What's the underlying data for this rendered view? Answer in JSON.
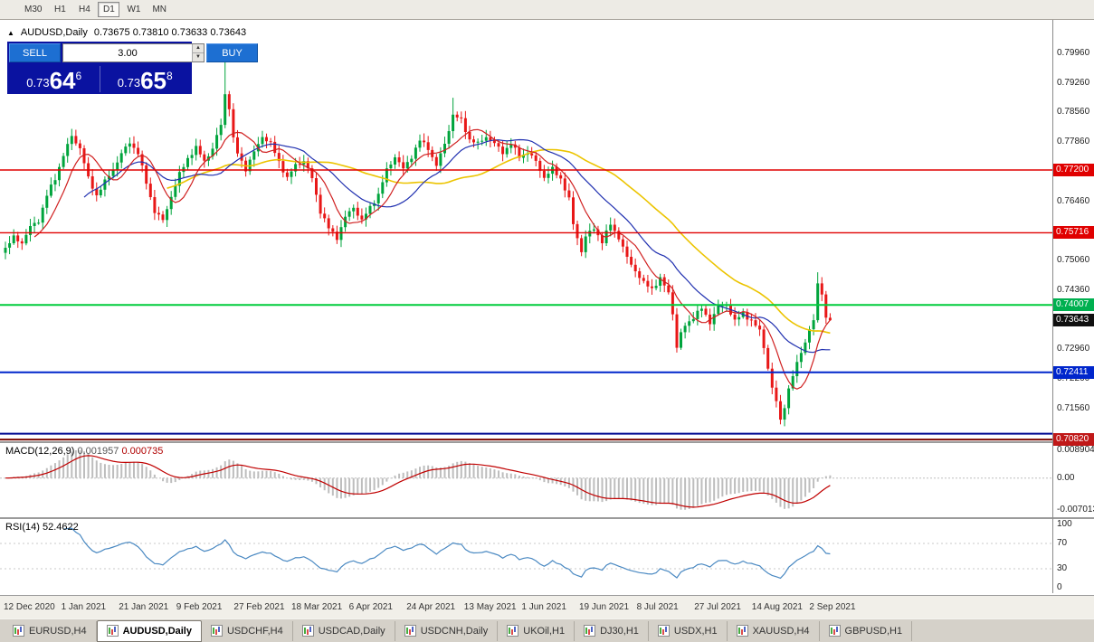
{
  "toolbar": {
    "timeframes": [
      "M30",
      "H1",
      "H4",
      "D1",
      "W1",
      "MN"
    ],
    "active_timeframe": "D1"
  },
  "symbol_info": {
    "collapse_icon": "up-triangle",
    "symbol": "AUDUSD,Daily",
    "ohlc": "0.73675 0.73810 0.73633 0.73643"
  },
  "trade_panel": {
    "sell_label": "SELL",
    "buy_label": "BUY",
    "volume": "3.00",
    "sell_price": {
      "prefix": "0.73",
      "big": "64",
      "sup": "6"
    },
    "buy_price": {
      "prefix": "0.73",
      "big": "65",
      "sup": "8"
    }
  },
  "price_axis": {
    "labels": [
      {
        "text": "0.79960",
        "price": 0.7996
      },
      {
        "text": "0.79260",
        "price": 0.7926
      },
      {
        "text": "0.78560",
        "price": 0.7856
      },
      {
        "text": "0.77860",
        "price": 0.7786
      },
      {
        "text": "0.76460",
        "price": 0.7646
      },
      {
        "text": "0.75060",
        "price": 0.7506
      },
      {
        "text": "0.74360",
        "price": 0.7436
      },
      {
        "text": "0.72960",
        "price": 0.7296
      },
      {
        "text": "0.72260",
        "price": 0.7226
      },
      {
        "text": "0.71560",
        "price": 0.7156
      }
    ],
    "badges": [
      {
        "text": "0.77200",
        "price": 0.772,
        "color": "#e00000"
      },
      {
        "text": "0.75716",
        "price": 0.75716,
        "color": "#e00000"
      },
      {
        "text": "0.74007",
        "price": 0.74007,
        "color": "#00b050"
      },
      {
        "text": "0.73643",
        "price": 0.73643,
        "color": "#101010"
      },
      {
        "text": "0.72411",
        "price": 0.72411,
        "color": "#0026cc"
      },
      {
        "text": "0.70820",
        "price": 0.7082,
        "color": "#c01818"
      }
    ]
  },
  "hlines": [
    {
      "price": 0.772,
      "color": "#e00000",
      "width": 1.4
    },
    {
      "price": 0.75716,
      "color": "#e00000",
      "width": 1.4
    },
    {
      "price": 0.74007,
      "color": "#00cc3c",
      "width": 2
    },
    {
      "price": 0.72411,
      "color": "#0026cc",
      "width": 2
    },
    {
      "price": 0.7096,
      "color": "#000890",
      "width": 2
    },
    {
      "price": 0.7082,
      "color": "#7c0a02",
      "width": 2
    }
  ],
  "chart_data": {
    "type": "candlestick",
    "symbol": "AUDUSD",
    "timeframe": "Daily",
    "num_candles": 200,
    "price_top": 0.8071,
    "price_bottom": 0.7078,
    "up_color": "#00a43c",
    "down_color": "#e81717",
    "last_close": 0.73643,
    "close_anchors": [
      [
        0,
        0.7535
      ],
      [
        2,
        0.756
      ],
      [
        4,
        0.7548
      ],
      [
        6,
        0.7585
      ],
      [
        8,
        0.76
      ],
      [
        10,
        0.766
      ],
      [
        12,
        0.77
      ],
      [
        14,
        0.7755
      ],
      [
        16,
        0.78
      ],
      [
        18,
        0.7772
      ],
      [
        20,
        0.77
      ],
      [
        22,
        0.766
      ],
      [
        24,
        0.7692
      ],
      [
        26,
        0.7722
      ],
      [
        28,
        0.7758
      ],
      [
        30,
        0.7786
      ],
      [
        32,
        0.776
      ],
      [
        34,
        0.769
      ],
      [
        36,
        0.7622
      ],
      [
        38,
        0.76
      ],
      [
        40,
        0.7658
      ],
      [
        42,
        0.771
      ],
      [
        44,
        0.7748
      ],
      [
        46,
        0.7772
      ],
      [
        48,
        0.7742
      ],
      [
        50,
        0.777
      ],
      [
        52,
        0.7828
      ],
      [
        53,
        0.79
      ],
      [
        54,
        0.7868
      ],
      [
        55,
        0.7792
      ],
      [
        56,
        0.776
      ],
      [
        58,
        0.7722
      ],
      [
        60,
        0.7762
      ],
      [
        62,
        0.78
      ],
      [
        64,
        0.7782
      ],
      [
        66,
        0.774
      ],
      [
        68,
        0.77
      ],
      [
        70,
        0.7732
      ],
      [
        72,
        0.7742
      ],
      [
        74,
        0.77
      ],
      [
        76,
        0.7622
      ],
      [
        78,
        0.7582
      ],
      [
        80,
        0.756
      ],
      [
        82,
        0.7608
      ],
      [
        84,
        0.7632
      ],
      [
        86,
        0.76
      ],
      [
        88,
        0.7632
      ],
      [
        90,
        0.7662
      ],
      [
        92,
        0.772
      ],
      [
        94,
        0.7752
      ],
      [
        96,
        0.7722
      ],
      [
        98,
        0.7752
      ],
      [
        100,
        0.779
      ],
      [
        102,
        0.7772
      ],
      [
        104,
        0.773
      ],
      [
        106,
        0.7782
      ],
      [
        108,
        0.785
      ],
      [
        110,
        0.7838
      ],
      [
        112,
        0.7792
      ],
      [
        114,
        0.7782
      ],
      [
        116,
        0.78
      ],
      [
        118,
        0.7782
      ],
      [
        120,
        0.7762
      ],
      [
        122,
        0.7782
      ],
      [
        124,
        0.7752
      ],
      [
        126,
        0.7762
      ],
      [
        128,
        0.774
      ],
      [
        130,
        0.7702
      ],
      [
        132,
        0.7722
      ],
      [
        134,
        0.77
      ],
      [
        136,
        0.765
      ],
      [
        137,
        0.7592
      ],
      [
        138,
        0.756
      ],
      [
        139,
        0.7528
      ],
      [
        140,
        0.7562
      ],
      [
        142,
        0.7582
      ],
      [
        144,
        0.755
      ],
      [
        146,
        0.7592
      ],
      [
        148,
        0.756
      ],
      [
        150,
        0.7512
      ],
      [
        152,
        0.7482
      ],
      [
        154,
        0.7452
      ],
      [
        156,
        0.744
      ],
      [
        158,
        0.7462
      ],
      [
        160,
        0.743
      ],
      [
        161,
        0.7382
      ],
      [
        162,
        0.73
      ],
      [
        163,
        0.7332
      ],
      [
        164,
        0.7352
      ],
      [
        166,
        0.7372
      ],
      [
        168,
        0.7392
      ],
      [
        170,
        0.736
      ],
      [
        172,
        0.7396
      ],
      [
        174,
        0.7402
      ],
      [
        176,
        0.7362
      ],
      [
        178,
        0.7382
      ],
      [
        180,
        0.7362
      ],
      [
        182,
        0.734
      ],
      [
        183,
        0.7302
      ],
      [
        184,
        0.7252
      ],
      [
        185,
        0.7202
      ],
      [
        186,
        0.7172
      ],
      [
        187,
        0.7128
      ],
      [
        188,
        0.7162
      ],
      [
        189,
        0.72
      ],
      [
        190,
        0.7232
      ],
      [
        191,
        0.7262
      ],
      [
        192,
        0.7292
      ],
      [
        193,
        0.7312
      ],
      [
        194,
        0.7342
      ],
      [
        195,
        0.7362
      ],
      [
        196,
        0.7452
      ],
      [
        197,
        0.743
      ],
      [
        198,
        0.7368
      ],
      [
        199,
        0.73643
      ]
    ],
    "wick_overrides": {
      "53": {
        "high": 0.8015
      },
      "108": {
        "high": 0.7891
      },
      "139": {
        "low": 0.7516
      },
      "162": {
        "low": 0.7288
      },
      "187": {
        "low": 0.7118
      },
      "196": {
        "high": 0.7478
      },
      "199": {
        "high": 0.7381,
        "low": 0.73633
      }
    },
    "moving_averages": [
      {
        "period": 40,
        "color": "#ecc400",
        "width": 1.6
      },
      {
        "period": 20,
        "color": "#2030b0",
        "width": 1.2
      },
      {
        "period": 8,
        "color": "#d02020",
        "width": 1.2
      }
    ],
    "x_axis_dates": [
      "12 Dec 2020",
      "1 Jan 2021",
      "21 Jan 2021",
      "9 Feb 2021",
      "27 Feb 2021",
      "18 Mar 2021",
      "6 Apr 2021",
      "24 Apr 2021",
      "13 May 2021",
      "1 Jun 2021",
      "19 Jun 2021",
      "8 Jul 2021",
      "27 Jul 2021",
      "14 Aug 2021",
      "2 Sep 2021"
    ]
  },
  "macd": {
    "label": "MACD(12,26,9)",
    "value_main": "0.001957",
    "value_signal": "0.000735",
    "axis": {
      "top": "0.008904",
      "zero": "0.00",
      "bottom": "-0.007013"
    },
    "hist_color": "#bdbdbd",
    "signal_color": "#c00000",
    "params": {
      "fast": 12,
      "slow": 26,
      "signal": 9
    }
  },
  "rsi": {
    "label": "RSI(14)",
    "value": "52.4622",
    "period": 14,
    "line_color": "#4a89c2",
    "levels": [
      70,
      30
    ],
    "axis": [
      {
        "text": "100",
        "v": 100
      },
      {
        "text": "70",
        "v": 70
      },
      {
        "text": "30",
        "v": 30
      },
      {
        "text": "0",
        "v": 0
      }
    ]
  },
  "tabs": {
    "items": [
      "EURUSD,H4",
      "AUDUSD,Daily",
      "USDCHF,H4",
      "USDCAD,Daily",
      "USDCNH,Daily",
      "UKOil,H1",
      "DJ30,H1",
      "USDX,H1",
      "XAUUSD,H4",
      "GBPUSD,H1"
    ],
    "active": "AUDUSD,Daily"
  }
}
